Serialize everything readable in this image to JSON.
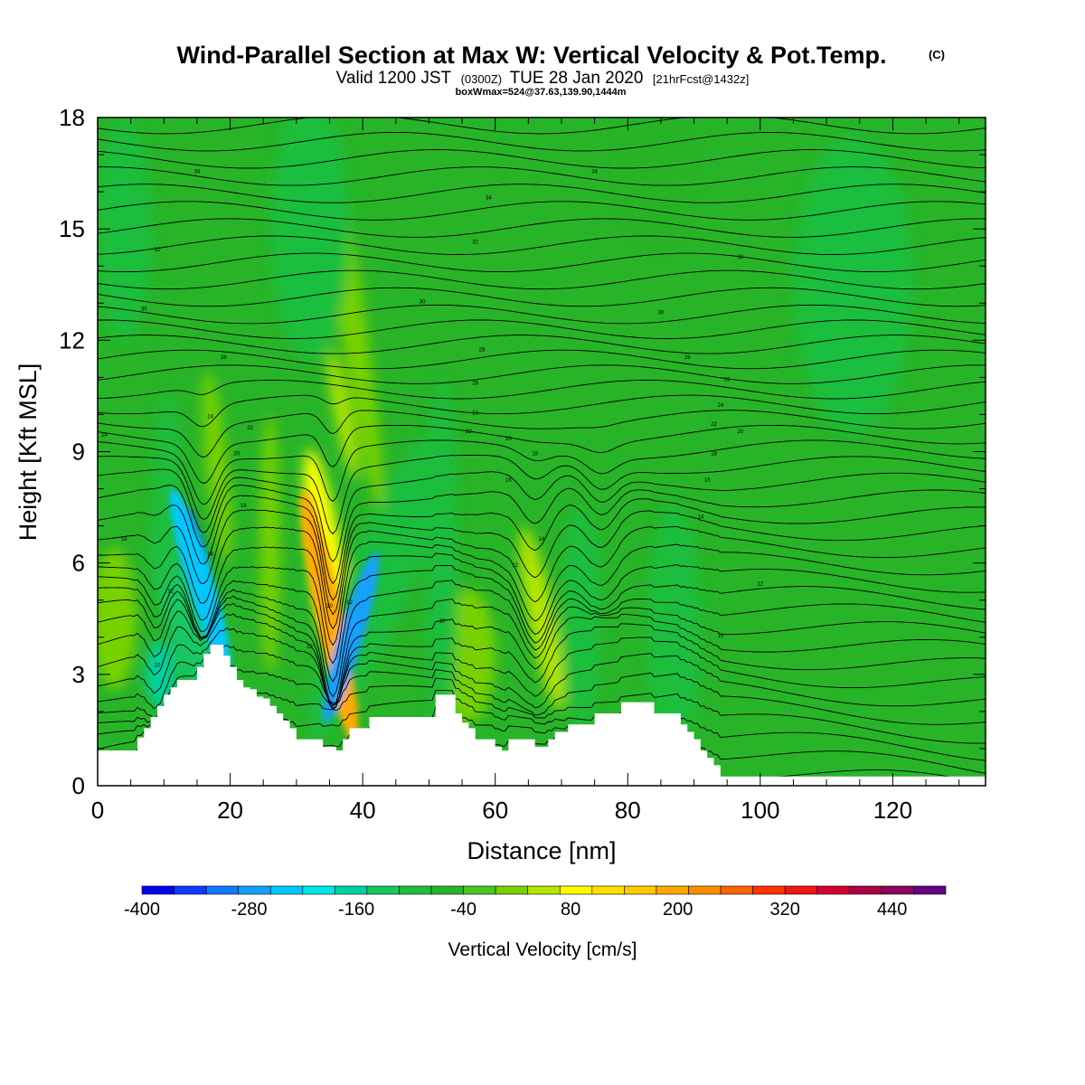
{
  "header": {
    "title": "Wind-Parallel Section at Max W: Vertical Velocity & Pot.Temp.",
    "title_mark": "(C)",
    "valid_prefix": "Valid 1200 JST",
    "valid_utc": "(0300Z)",
    "valid_date": "TUE 28 Jan 2020",
    "forecast_info": "[21hrFcst@1432z]",
    "box_info": "boxWmax=524@37.63,139.90,1444m"
  },
  "chart_data": {
    "type": "heatmap",
    "title": "Wind-Parallel Section at Max W: Vertical Velocity & Pot.Temp.",
    "xlabel": "Distance [nm]",
    "ylabel": "Height [Kft MSL]",
    "xlim": [
      0,
      134
    ],
    "ylim": [
      0,
      18
    ],
    "x_ticks": [
      0,
      20,
      40,
      60,
      80,
      100,
      120
    ],
    "y_ticks": [
      0,
      3,
      6,
      9,
      12,
      15,
      18
    ],
    "x_tick_labels": [
      "0",
      "20",
      "40",
      "60",
      "80",
      "100",
      "120"
    ],
    "y_tick_labels": [
      "0",
      "3",
      "6",
      "9",
      "12",
      "15",
      "18"
    ],
    "background_value": -20,
    "terrain": [
      [
        0,
        0.95
      ],
      [
        4,
        0.95
      ],
      [
        6,
        1.3
      ],
      [
        7,
        1.55
      ],
      [
        8,
        1.85
      ],
      [
        9,
        2.15
      ],
      [
        10,
        2.45
      ],
      [
        11,
        2.65
      ],
      [
        12,
        2.85
      ],
      [
        14,
        2.85
      ],
      [
        15,
        3.2
      ],
      [
        16,
        3.55
      ],
      [
        17,
        3.8
      ],
      [
        18,
        3.8
      ],
      [
        19,
        3.5
      ],
      [
        20,
        3.2
      ],
      [
        21,
        2.85
      ],
      [
        22,
        2.65
      ],
      [
        23,
        2.6
      ],
      [
        24,
        2.4
      ],
      [
        25,
        2.35
      ],
      [
        26,
        2.15
      ],
      [
        27,
        1.95
      ],
      [
        28,
        1.75
      ],
      [
        29,
        1.55
      ],
      [
        30,
        1.25
      ],
      [
        33,
        1.25
      ],
      [
        34,
        1.05
      ],
      [
        36,
        0.95
      ],
      [
        37,
        1.25
      ],
      [
        38,
        1.55
      ],
      [
        40,
        1.55
      ],
      [
        41,
        1.85
      ],
      [
        50,
        1.85
      ],
      [
        51,
        2.45
      ],
      [
        53,
        2.45
      ],
      [
        54,
        1.95
      ],
      [
        55,
        1.7
      ],
      [
        56,
        1.55
      ],
      [
        57,
        1.25
      ],
      [
        59,
        1.25
      ],
      [
        60,
        1.05
      ],
      [
        61,
        0.95
      ],
      [
        62,
        1.25
      ],
      [
        65,
        1.25
      ],
      [
        66,
        1.05
      ],
      [
        67,
        1.05
      ],
      [
        68,
        1.25
      ],
      [
        69,
        1.45
      ],
      [
        71,
        1.65
      ],
      [
        74,
        1.65
      ],
      [
        75,
        1.95
      ],
      [
        78,
        1.95
      ],
      [
        79,
        2.25
      ],
      [
        83,
        2.25
      ],
      [
        84,
        1.95
      ],
      [
        87,
        1.95
      ],
      [
        88,
        1.65
      ],
      [
        89,
        1.45
      ],
      [
        90,
        1.25
      ],
      [
        91,
        0.95
      ],
      [
        92,
        0.75
      ],
      [
        93,
        0.55
      ],
      [
        94,
        0.25
      ],
      [
        134,
        0.25
      ]
    ],
    "w_features": [
      {
        "x": 16,
        "y": 5.8,
        "rx": 1.1,
        "ry": 1.7,
        "tilt": -0.25,
        "value": -380
      },
      {
        "x": 15.5,
        "y": 5.5,
        "rx": 2.0,
        "ry": 2.6,
        "tilt": -0.3,
        "value": -240
      },
      {
        "x": 14,
        "y": 4.2,
        "rx": 3.2,
        "ry": 3.0,
        "tilt": -0.3,
        "value": -120
      },
      {
        "x": 9.5,
        "y": 3.0,
        "rx": 2.2,
        "ry": 0.9,
        "tilt": 0.0,
        "value": -150
      },
      {
        "x": 35,
        "y": 4.5,
        "rx": 1.3,
        "ry": 2.8,
        "tilt": -0.2,
        "value": 380
      },
      {
        "x": 35,
        "y": 4.5,
        "rx": 2.0,
        "ry": 3.5,
        "tilt": -0.2,
        "value": 240
      },
      {
        "x": 35,
        "y": 5.5,
        "rx": 2.6,
        "ry": 3.6,
        "tilt": -0.15,
        "value": 120
      },
      {
        "x": 38.2,
        "y": 4.0,
        "rx": 1.8,
        "ry": 2.4,
        "tilt": 0.3,
        "value": -280
      },
      {
        "x": 40,
        "y": 4.8,
        "rx": 3.6,
        "ry": 3.6,
        "tilt": 0.4,
        "value": -170
      },
      {
        "x": 42,
        "y": 5.4,
        "rx": 5.0,
        "ry": 4.4,
        "tilt": 0.4,
        "value": -80
      },
      {
        "x": 38,
        "y": 13.0,
        "rx": 2.0,
        "ry": 5.6,
        "tilt": -0.15,
        "value": 60
      },
      {
        "x": 37,
        "y": 10.0,
        "rx": 1.2,
        "ry": 1.8,
        "tilt": -0.2,
        "value": 110
      },
      {
        "x": 2.5,
        "y": 4.5,
        "rx": 3.3,
        "ry": 1.9,
        "tilt": 0.0,
        "value": 70
      },
      {
        "x": 18,
        "y": 8.6,
        "rx": 1.6,
        "ry": 2.6,
        "tilt": -0.1,
        "value": 55
      },
      {
        "x": 26,
        "y": 6.5,
        "rx": 1.5,
        "ry": 3.5,
        "tilt": 0.0,
        "value": 40
      },
      {
        "x": 56,
        "y": 3.5,
        "rx": 4.0,
        "ry": 1.8,
        "tilt": 0.0,
        "value": 70
      },
      {
        "x": 67,
        "y": 4.5,
        "rx": 2.0,
        "ry": 2.5,
        "tilt": -0.2,
        "value": 100
      },
      {
        "x": 52,
        "y": 6.0,
        "rx": 2.4,
        "ry": 5.0,
        "tilt": 0.0,
        "value": -70
      },
      {
        "x": 73,
        "y": 4.5,
        "rx": 3.0,
        "ry": 3.0,
        "tilt": 0.0,
        "value": -60
      },
      {
        "x": 87,
        "y": 4.2,
        "rx": 4.0,
        "ry": 3.4,
        "tilt": 0.0,
        "value": -60
      },
      {
        "x": 114,
        "y": 13.5,
        "rx": 9.0,
        "ry": 4.0,
        "tilt": 0.0,
        "value": -45
      },
      {
        "x": 4,
        "y": 15.0,
        "rx": 4.0,
        "ry": 3.0,
        "tilt": 0.0,
        "value": -45
      },
      {
        "x": 32,
        "y": 15.0,
        "rx": 6.0,
        "ry": 3.5,
        "tilt": 0.0,
        "value": -45
      },
      {
        "x": 84,
        "y": 16.5,
        "rx": 5.0,
        "ry": 2.0,
        "tilt": 0.0,
        "value": -40
      },
      {
        "x": 10.5,
        "y": 8.0,
        "rx": 2.0,
        "ry": 2.6,
        "tilt": 0.0,
        "value": -70
      }
    ],
    "colorbar": {
      "title": "Vertical Velocity [cm/s]",
      "min": -400,
      "max": 500,
      "step": 40,
      "labels": [
        "-400",
        "-280",
        "-160",
        "-40",
        "80",
        "200",
        "320",
        "440"
      ],
      "label_values": [
        -400,
        -280,
        -160,
        -40,
        80,
        200,
        320,
        440
      ],
      "colors": [
        "#0000f0",
        "#0a3cff",
        "#0f78ff",
        "#14a0ff",
        "#00c8ff",
        "#00e6e6",
        "#00d2a0",
        "#14c864",
        "#1ebe3c",
        "#28b428",
        "#46c81e",
        "#78d200",
        "#b4e600",
        "#ffff00",
        "#ffe100",
        "#ffc800",
        "#ffaa00",
        "#ff8c00",
        "#ff6400",
        "#ff3200",
        "#f01414",
        "#d20032",
        "#aa0046",
        "#8c005a",
        "#640082"
      ]
    },
    "isentrope_count": 44,
    "contour_labels": [
      "34",
      "32",
      "30",
      "28",
      "26",
      "24",
      "22",
      "20",
      "18",
      "16",
      "14",
      "12",
      "10"
    ]
  }
}
